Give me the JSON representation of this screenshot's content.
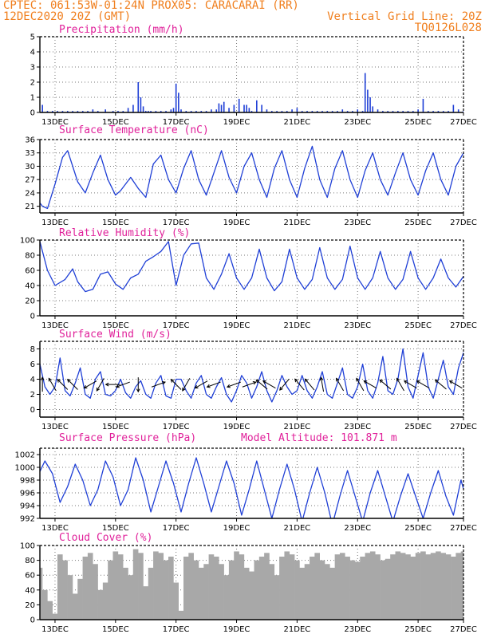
{
  "header": {
    "left_line1": "CPTEC:   061:53W-01:24N   PROX05: CARACARAI (RR)",
    "left_line2": "12DEC2020 20Z (GMT)",
    "right_line2": "Vertical Grid Line: 20Z",
    "right_line3": "TQ0126L028"
  },
  "x_ticks": [
    "13DEC",
    "15DEC",
    "17DEC",
    "19DEC",
    "21DEC",
    "23DEC",
    "25DEC",
    "27DEC"
  ],
  "chart_data": [
    {
      "type": "bar",
      "title": "Precipitation (mm/h)",
      "ylim": [
        0,
        5
      ],
      "yticks": [
        0,
        1,
        2,
        3,
        4,
        5
      ],
      "x_hours": [
        2,
        3,
        4,
        5,
        7,
        10,
        14,
        18,
        22,
        26,
        30,
        34,
        38,
        42,
        46,
        50,
        54,
        60,
        66,
        70,
        74,
        78,
        82,
        86,
        88,
        90,
        92,
        94,
        96,
        100,
        104,
        108,
        112,
        114,
        116,
        118,
        120,
        124,
        128,
        132,
        136,
        140,
        144,
        148,
        150,
        152,
        154,
        158,
        162,
        166,
        170,
        172,
        174,
        176,
        180,
        184,
        188,
        192,
        196,
        200,
        204,
        208,
        212,
        216,
        220,
        224,
        228,
        232,
        236,
        240,
        244,
        248,
        252,
        256,
        260,
        264,
        266,
        268,
        270,
        272,
        276,
        280,
        284,
        288,
        292,
        296,
        300,
        304,
        308,
        312,
        316,
        320,
        324,
        328,
        332,
        336,
        340,
        344
      ],
      "values": [
        1.7,
        0.6,
        1.2,
        0.4,
        0.3,
        0.5,
        0.1,
        0.1,
        0.1,
        0.1,
        0.1,
        0.1,
        0.1,
        0.1,
        0.1,
        0.2,
        0.1,
        0.2,
        0.1,
        0.1,
        0.1,
        0.3,
        0.5,
        2.0,
        1.0,
        0.4,
        0.1,
        0.1,
        0.1,
        0.1,
        0.1,
        0.1,
        0.2,
        0.3,
        1.9,
        1.3,
        0.2,
        0.1,
        0.1,
        0.1,
        0.1,
        0.1,
        0.2,
        0.2,
        0.6,
        0.5,
        0.7,
        0.3,
        0.5,
        0.9,
        0.5,
        0.5,
        0.3,
        0.1,
        0.8,
        0.5,
        0.2,
        0.1,
        0.1,
        0.1,
        0.1,
        0.2,
        0.3,
        0.1,
        0.1,
        0.1,
        0.1,
        0.1,
        0.1,
        0.1,
        0.1,
        0.2,
        0.1,
        0.1,
        0.2,
        0.1,
        2.6,
        1.5,
        1.0,
        0.4,
        0.2,
        0.1,
        0.1,
        0.1,
        0.1,
        0.1,
        0.1,
        0.1,
        0.2,
        0.9,
        0.1,
        0.1,
        0.1,
        0.1,
        0.1,
        0.5,
        0.2,
        0.1
      ],
      "color": "#1f3fd6"
    },
    {
      "type": "line",
      "title": "Surface Temperature (nC)",
      "ylim": [
        19.5,
        36
      ],
      "yticks": [
        21,
        24,
        27,
        30,
        33,
        36
      ],
      "x_hours": [
        0,
        6,
        10,
        14,
        20,
        26,
        30,
        38,
        44,
        50,
        56,
        62,
        68,
        72,
        80,
        86,
        92,
        98,
        104,
        110,
        116,
        122,
        128,
        134,
        140,
        146,
        152,
        158,
        164,
        170,
        176,
        182,
        188,
        194,
        200,
        206,
        212,
        218,
        224,
        230,
        236,
        242,
        248,
        254,
        260,
        266,
        272,
        278,
        284,
        290,
        296,
        302,
        308,
        314,
        320,
        326,
        332,
        338,
        344,
        348
      ],
      "values": [
        24.5,
        22.5,
        21.0,
        20.5,
        26.0,
        32.0,
        33.5,
        26.5,
        24.0,
        28.5,
        32.5,
        27.0,
        23.5,
        24.5,
        27.5,
        25.0,
        23.0,
        30.5,
        32.5,
        27.0,
        24.0,
        29.5,
        33.5,
        27.0,
        23.5,
        28.5,
        33.5,
        27.5,
        24.0,
        30.0,
        33.0,
        27.0,
        23.0,
        29.5,
        33.5,
        27.0,
        23.0,
        29.5,
        34.5,
        27.0,
        23.0,
        29.5,
        33.5,
        27.0,
        23.0,
        29.0,
        33.0,
        27.0,
        23.5,
        28.5,
        33.0,
        27.0,
        23.5,
        29.0,
        33.0,
        27.0,
        23.5,
        30.0,
        33.0,
        31.0
      ],
      "color": "#1f3fd6"
    },
    {
      "type": "line",
      "title": "Relative Humidity (%)",
      "ylim": [
        0,
        100
      ],
      "yticks": [
        0,
        20,
        40,
        60,
        80,
        100
      ],
      "x_hours": [
        0,
        8,
        14,
        20,
        28,
        34,
        38,
        44,
        50,
        56,
        62,
        68,
        74,
        80,
        86,
        92,
        98,
        104,
        110,
        116,
        122,
        128,
        134,
        140,
        146,
        152,
        158,
        164,
        170,
        176,
        182,
        188,
        194,
        200,
        206,
        212,
        218,
        224,
        230,
        236,
        242,
        248,
        254,
        260,
        266,
        272,
        278,
        284,
        290,
        296,
        302,
        308,
        314,
        320,
        326,
        332,
        338,
        344,
        348
      ],
      "values": [
        100,
        98,
        60,
        40,
        48,
        62,
        45,
        32,
        35,
        55,
        58,
        42,
        35,
        50,
        55,
        72,
        78,
        85,
        98,
        40,
        80,
        95,
        96,
        50,
        35,
        55,
        82,
        50,
        35,
        50,
        88,
        50,
        33,
        45,
        88,
        50,
        35,
        48,
        90,
        50,
        35,
        48,
        92,
        50,
        35,
        50,
        85,
        50,
        35,
        48,
        85,
        50,
        35,
        50,
        75,
        50,
        38,
        52,
        40
      ],
      "color": "#1f3fd6"
    },
    {
      "type": "line",
      "title": "Surface Wind (m/s)",
      "ylim": [
        -1,
        9
      ],
      "yticks": [
        0,
        2,
        4,
        6,
        8
      ],
      "x_hours": [
        0,
        4,
        8,
        12,
        16,
        20,
        24,
        28,
        32,
        36,
        40,
        44,
        48,
        52,
        56,
        60,
        64,
        68,
        72,
        76,
        80,
        84,
        88,
        92,
        96,
        100,
        104,
        108,
        112,
        116,
        120,
        124,
        128,
        132,
        136,
        140,
        144,
        148,
        152,
        156,
        160,
        164,
        168,
        172,
        176,
        180,
        184,
        188,
        192,
        196,
        200,
        204,
        208,
        212,
        216,
        220,
        224,
        228,
        232,
        236,
        240,
        244,
        248,
        252,
        256,
        260,
        264,
        268,
        272,
        276,
        280,
        284,
        288,
        292,
        296,
        300,
        304,
        308,
        312,
        316,
        320,
        324,
        328,
        332,
        336,
        340,
        344,
        348
      ],
      "values": [
        0.0,
        2.5,
        6.0,
        3.0,
        2.0,
        3.0,
        6.8,
        2.5,
        1.8,
        3.5,
        5.5,
        2.0,
        1.5,
        4.0,
        5.0,
        2.0,
        1.8,
        2.5,
        4.0,
        2.2,
        1.5,
        3.0,
        3.8,
        2.0,
        1.5,
        3.5,
        4.5,
        1.8,
        1.5,
        4.0,
        4.0,
        2.5,
        1.5,
        3.5,
        4.5,
        2.0,
        1.5,
        3.0,
        4.2,
        2.0,
        1.0,
        2.5,
        4.5,
        3.5,
        1.5,
        3.0,
        5.0,
        2.5,
        1.0,
        2.5,
        4.5,
        3.0,
        2.0,
        2.5,
        4.5,
        2.5,
        1.5,
        3.0,
        5.0,
        2.0,
        1.5,
        3.5,
        5.5,
        2.0,
        1.5,
        3.0,
        6.0,
        2.5,
        1.5,
        3.5,
        7.0,
        2.5,
        2.0,
        4.0,
        8.0,
        3.0,
        1.5,
        4.5,
        7.5,
        3.0,
        1.5,
        4.0,
        6.5,
        3.0,
        2.0,
        5.5,
        7.5,
        3.5
      ],
      "arrow_hours": [
        10,
        18,
        26,
        34,
        48,
        56,
        66,
        74,
        86,
        102,
        116,
        124,
        136,
        146,
        162,
        174,
        184,
        190,
        202,
        214,
        222,
        232,
        246,
        262,
        270,
        282,
        294,
        302,
        312,
        326,
        338
      ],
      "arrow_dirs_deg": [
        90,
        120,
        135,
        135,
        210,
        240,
        180,
        200,
        270,
        20,
        135,
        240,
        210,
        200,
        200,
        20,
        140,
        150,
        230,
        130,
        130,
        100,
        120,
        120,
        150,
        140,
        120,
        150,
        150,
        140,
        150
      ],
      "color": "#1f3fd6"
    },
    {
      "type": "line",
      "title": "Surface Pressure (hPa)",
      "subtitle": "Model Altitude: 101.871 m",
      "ylim": [
        992,
        1003
      ],
      "yticks": [
        992,
        994,
        996,
        998,
        1000,
        1002
      ],
      "x_hours": [
        0,
        6,
        12,
        18,
        24,
        30,
        36,
        42,
        48,
        54,
        60,
        66,
        72,
        78,
        84,
        90,
        96,
        102,
        108,
        114,
        120,
        126,
        132,
        138,
        144,
        150,
        156,
        162,
        168,
        174,
        180,
        186,
        192,
        198,
        204,
        210,
        216,
        222,
        228,
        234,
        240,
        246,
        252,
        258,
        264,
        270,
        276,
        282,
        288,
        294,
        300,
        306,
        312,
        318,
        324,
        330,
        336,
        342,
        348
      ],
      "values": [
        999.0,
        998.5,
        1001.0,
        999.0,
        994.5,
        997.0,
        1000.5,
        998.0,
        994.0,
        996.5,
        1001.0,
        998.5,
        994.0,
        996.5,
        1001.5,
        998.0,
        993.0,
        997.0,
        1001.0,
        997.5,
        993.0,
        997.5,
        1001.5,
        997.5,
        993.0,
        997.0,
        1001.0,
        997.5,
        992.5,
        996.5,
        1001.0,
        996.5,
        992.0,
        996.5,
        1000.5,
        996.5,
        991.5,
        996.0,
        1000.0,
        996.0,
        991.0,
        995.5,
        999.5,
        995.5,
        991.5,
        996.0,
        999.5,
        995.5,
        991.5,
        995.5,
        999.0,
        995.5,
        992.0,
        996.0,
        999.5,
        995.5,
        992.5,
        998.0,
        994.0
      ],
      "color": "#1f3fd6"
    },
    {
      "type": "bar",
      "title": "Cloud Cover (%)",
      "ylim": [
        0,
        100
      ],
      "yticks": [
        0,
        20,
        40,
        60,
        80,
        100
      ],
      "x_hours": [
        0,
        4,
        8,
        12,
        16,
        20,
        24,
        28,
        32,
        36,
        40,
        44,
        48,
        52,
        56,
        60,
        64,
        68,
        72,
        76,
        80,
        84,
        88,
        92,
        96,
        100,
        104,
        108,
        112,
        116,
        120,
        124,
        128,
        132,
        136,
        140,
        144,
        148,
        152,
        156,
        160,
        164,
        168,
        172,
        176,
        180,
        184,
        188,
        192,
        196,
        200,
        204,
        208,
        212,
        216,
        220,
        224,
        228,
        232,
        236,
        240,
        244,
        248,
        252,
        256,
        260,
        264,
        268,
        272,
        276,
        280,
        284,
        288,
        292,
        296,
        300,
        304,
        308,
        312,
        316,
        320,
        324,
        328,
        332,
        336,
        340,
        344
      ],
      "values": [
        92,
        85,
        70,
        40,
        25,
        8,
        88,
        80,
        60,
        35,
        55,
        85,
        90,
        75,
        40,
        50,
        80,
        92,
        88,
        70,
        60,
        95,
        90,
        45,
        70,
        92,
        90,
        80,
        85,
        50,
        12,
        85,
        90,
        80,
        70,
        75,
        88,
        85,
        75,
        60,
        80,
        92,
        88,
        70,
        65,
        80,
        85,
        90,
        75,
        60,
        85,
        92,
        88,
        80,
        70,
        75,
        85,
        90,
        80,
        75,
        70,
        88,
        90,
        85,
        80,
        78,
        85,
        90,
        92,
        88,
        80,
        82,
        88,
        92,
        90,
        88,
        85,
        90,
        92,
        88,
        90,
        92,
        90,
        88,
        85,
        90,
        92
      ],
      "color": "#a8a8a8"
    }
  ]
}
